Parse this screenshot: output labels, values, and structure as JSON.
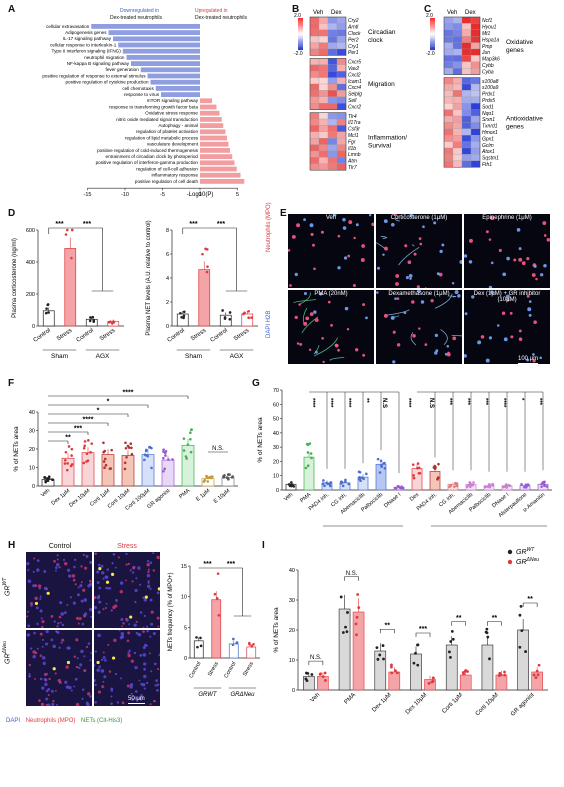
{
  "panels": {
    "A": {
      "label": "A",
      "legend_down": "Downregulated in",
      "legend_up": "Upregulated in",
      "legend_sub": "Dex-treated neutrophils",
      "xlabel": "-Log10(P)",
      "ticks": [
        "-15",
        "-10",
        "-5",
        "0",
        "5"
      ],
      "down_terms": [
        "cellular extravasation",
        "Adipogenesis genes",
        "IL-17 signaling pathway",
        "cellular response to interleukin-1",
        "Type II interferon signaling (IFNG)",
        "neutrophil migration",
        "NF-kappa B signaling pathway",
        "fever generation",
        "positive regulation of response to external stimulus",
        "positive regulation of cytokine production",
        "cell chemotaxis",
        "response to virus"
      ],
      "up_terms": [
        "mTOR signaling pathway",
        "response to transforming growth factor beta",
        "Oxidative stress response",
        "nitric oxide mediated signal transduction",
        "Autophagy - animal",
        "regulation of platelet activation",
        "regulation of lipid metabolic process",
        "vasculature development",
        "positive regulation of cold-induced thermogenesis",
        "entrainment of circadian clock by photoperiod",
        "positive regulation of interferon-gamma production",
        "regulation of cell-cell adhesion",
        "inflammatory response",
        "positive regulation of cell death"
      ]
    },
    "B": {
      "label": "B",
      "col_labels": [
        "Veh",
        "Dex"
      ],
      "scale_max": "2.0",
      "scale_min": "-2.0",
      "groups": [
        {
          "name": "Circadian clock",
          "genes": [
            "Cry2",
            "Arntl",
            "Clock",
            "Per2",
            "Cry1",
            "Per1"
          ]
        },
        {
          "name": "Migration",
          "genes": [
            "Cxcr5",
            "Vav2",
            "Cxcl2",
            "Icam1",
            "Cxcr4",
            "Selplg",
            "Sell",
            "Cxcr2"
          ]
        },
        {
          "name": "Inflammation/ Survival",
          "genes": [
            "Tlr4",
            "Il17ra",
            "Csf3r",
            "Mcl1",
            "Fgr",
            "Il1b",
            "Lmnb",
            "Atm",
            "Tlr7"
          ]
        }
      ]
    },
    "C": {
      "label": "C",
      "col_labels": [
        "Veh",
        "Dex"
      ],
      "scale_max": "2.0",
      "scale_min": "-2.0",
      "groups": [
        {
          "name": "Oxidative genes",
          "genes": [
            "Ncf1",
            "Hyou1",
            "Mt1",
            "Hspa1a",
            "Pmp",
            "Jun",
            "Map3k6",
            "Cybb",
            "Cyba"
          ]
        },
        {
          "name": "Antioxidative genes",
          "genes": [
            "s100a8",
            "s100a9",
            "Prdx1",
            "Prdx5",
            "Sod1",
            "Nqo1",
            "Srxn1",
            "Txnrd1",
            "Hmox1",
            "Gpx1",
            "Gclm",
            "Atox1",
            "Sqstm1",
            "Fth1"
          ]
        }
      ]
    },
    "D": {
      "label": "D",
      "left": {
        "ylabel": "Plasma corticosterone (ng/ml)",
        "ticks": [
          "0",
          "200",
          "400",
          "600"
        ],
        "sig": [
          "***",
          "***"
        ],
        "categories": [
          "Control",
          "Stress",
          "Control",
          "Stress"
        ],
        "groups": [
          "Sham",
          "AGX"
        ],
        "chart_data": {
          "type": "bar",
          "categories": [
            "Sham Control",
            "Sham Stress",
            "AGX Control",
            "AGX Stress"
          ],
          "values": [
            95,
            485,
            42,
            28
          ],
          "ylim": [
            0,
            600
          ]
        }
      },
      "right": {
        "ylabel": "Plasma NET levels (A.U. relative to control)",
        "ticks": [
          "0",
          "2",
          "4",
          "6",
          "8"
        ],
        "sig": [
          "***",
          "***"
        ],
        "categories": [
          "Control",
          "Stress",
          "Control",
          "Stress"
        ],
        "groups": [
          "Sham",
          "AGX"
        ],
        "chart_data": {
          "type": "bar",
          "categories": [
            "Sham Control",
            "Sham Stress",
            "AGX Control",
            "AGX Stress"
          ],
          "values": [
            1.0,
            4.7,
            0.9,
            1.0
          ],
          "ylim": [
            0,
            8
          ]
        }
      }
    },
    "E": {
      "label": "E",
      "side_label": "Neutrophils (MPO)",
      "side_label2": "DAPI  H2B",
      "tiles": [
        "Veh",
        "Corticosterone (1μM)",
        "Epinephrine (1μM)",
        "PMA (20nM)",
        "Dexamethasone (1μM)",
        "Dex (1μM) + GR inhibitor (10μM)"
      ],
      "scalebar": "100 μm"
    },
    "F": {
      "label": "F",
      "ylabel": "% of NETs area",
      "ticks": [
        "0",
        "10",
        "20",
        "30",
        "40"
      ],
      "categories": [
        "Veh",
        "Dex 1μM",
        "Dex 10μM",
        "Corti 1μM",
        "Corti 10μM",
        "Corti 100μM",
        "GR agonist",
        "PMA",
        "E 1μM",
        "E 10μM"
      ],
      "sig": [
        "**",
        "***",
        "****",
        "*",
        "*",
        "****",
        "N.S."
      ],
      "chart_data": {
        "type": "bar",
        "categories": [
          "Veh",
          "Dex 1μM",
          "Dex 10μM",
          "Corti 1μM",
          "Corti 10μM",
          "Corti 100μM",
          "GR agonist",
          "PMA",
          "E 1μM",
          "E 10μM"
        ],
        "values": [
          3.5,
          15,
          18,
          17,
          16.5,
          17,
          14,
          22,
          4,
          4.5
        ],
        "ylim": [
          0,
          40
        ]
      }
    },
    "G": {
      "label": "G",
      "ylabel": "% of NETs area",
      "ticks": [
        "0",
        "10",
        "20",
        "30",
        "40",
        "50",
        "60",
        "70"
      ],
      "categories_pma": [
        "Veh",
        "PMA",
        "PAD4 inh.",
        "CG inh.",
        "Abemaciclib",
        "Palbociclib",
        "DNase I"
      ],
      "categories_dex": [
        "Dex",
        "PAD4 inh.",
        "CG inh.",
        "Abemaciclib",
        "Palbociclib",
        "DNase I",
        "Alsterpaullone",
        "α-Amanitin"
      ],
      "group_pma": "Inhibitors with PMA (20nM)",
      "group_dex": "Inhibitors with Dex (1μM)",
      "sig_pma": [
        "****",
        "****",
        "****",
        "**",
        "N.S",
        "****"
      ],
      "sig_dex": [
        "N.S",
        "***",
        "***",
        "***",
        "****",
        "*",
        "***"
      ],
      "chart_data": {
        "type": "bar",
        "categories": [
          "Veh",
          "PMA",
          "PMA+PAD4 inh.",
          "PMA+CG inh.",
          "PMA+Abemaciclib",
          "PMA+Palbociclib",
          "PMA+DNase I",
          "Dex",
          "Dex+PAD4 inh.",
          "Dex+CG inh.",
          "Dex+Abemaciclib",
          "Dex+Palbociclib",
          "Dex+DNase I",
          "Dex+Alsterpaullone",
          "Dex+α-Amanitin"
        ],
        "values": [
          4,
          23,
          5,
          5,
          9,
          18,
          2,
          15,
          13,
          4,
          4,
          3,
          3,
          3,
          4
        ],
        "ylim": [
          0,
          70
        ]
      }
    },
    "H": {
      "label": "H",
      "col_control": "Control",
      "col_stress": "Stress",
      "row_wt": "GR",
      "row_wt_sup": "WT",
      "row_ko": "GR",
      "row_ko_sup": "ΔNeu",
      "scalebar": "50 μm",
      "caption_dapi": "DAPI",
      "caption_mpo": "Neutrophils (MPO)",
      "caption_nets": "NETs (Cit-His3)",
      "chart": {
        "ylabel": "NETs frequency (% of MPO+)",
        "ticks": [
          "0",
          "5",
          "10",
          "15"
        ],
        "sig": [
          "***",
          "***"
        ],
        "categories": [
          "Control",
          "Stress",
          "Control",
          "Stress"
        ],
        "groups": [
          "GRWT",
          "GRΔNeu"
        ],
        "chart_data": {
          "type": "bar",
          "categories": [
            "GRWT Control",
            "GRWT Stress",
            "GRΔNeu Control",
            "GRΔNeu Stress"
          ],
          "values": [
            2.8,
            9.5,
            2.3,
            1.8
          ],
          "ylim": [
            0,
            15
          ]
        }
      }
    },
    "I": {
      "label": "I",
      "ylabel": "% of NETs area",
      "ticks": [
        "0",
        "10",
        "20",
        "30",
        "40"
      ],
      "legend": [
        {
          "name": "GR",
          "sup": "WT",
          "color": "#222222"
        },
        {
          "name": "GR",
          "sup": "ΔNeu",
          "color": "#e0393e"
        }
      ],
      "categories": [
        "Veh",
        "PMA",
        "Dex 1μM",
        "Dex 10μM",
        "Corti 1μM",
        "Corti 10μM",
        "GR agonist"
      ],
      "sig": [
        "N.S.",
        "N.S.",
        "**",
        "***",
        "**",
        "**",
        "**"
      ],
      "chart_data": {
        "type": "bar",
        "categories": [
          "Veh",
          "PMA",
          "Dex 1μM",
          "Dex 10μM",
          "Corti 1μM",
          "Corti 10μM",
          "GR agonist"
        ],
        "series": [
          {
            "name": "GRWT",
            "values": [
              4.5,
              27,
              13,
              12,
              15,
              15,
              20
            ]
          },
          {
            "name": "GRΔNeu",
            "values": [
              4.5,
              26,
              6,
              3.5,
              5,
              5,
              6
            ]
          }
        ],
        "ylim": [
          0,
          40
        ]
      }
    }
  },
  "colors": {
    "red": "#e0393e",
    "pink": "#f4a3a6",
    "blue": "#4a6fd0",
    "green": "#3fb34f",
    "purple": "#9a5bd1",
    "lightblue": "#8fa9e8",
    "gray": "#bdbdbd"
  }
}
